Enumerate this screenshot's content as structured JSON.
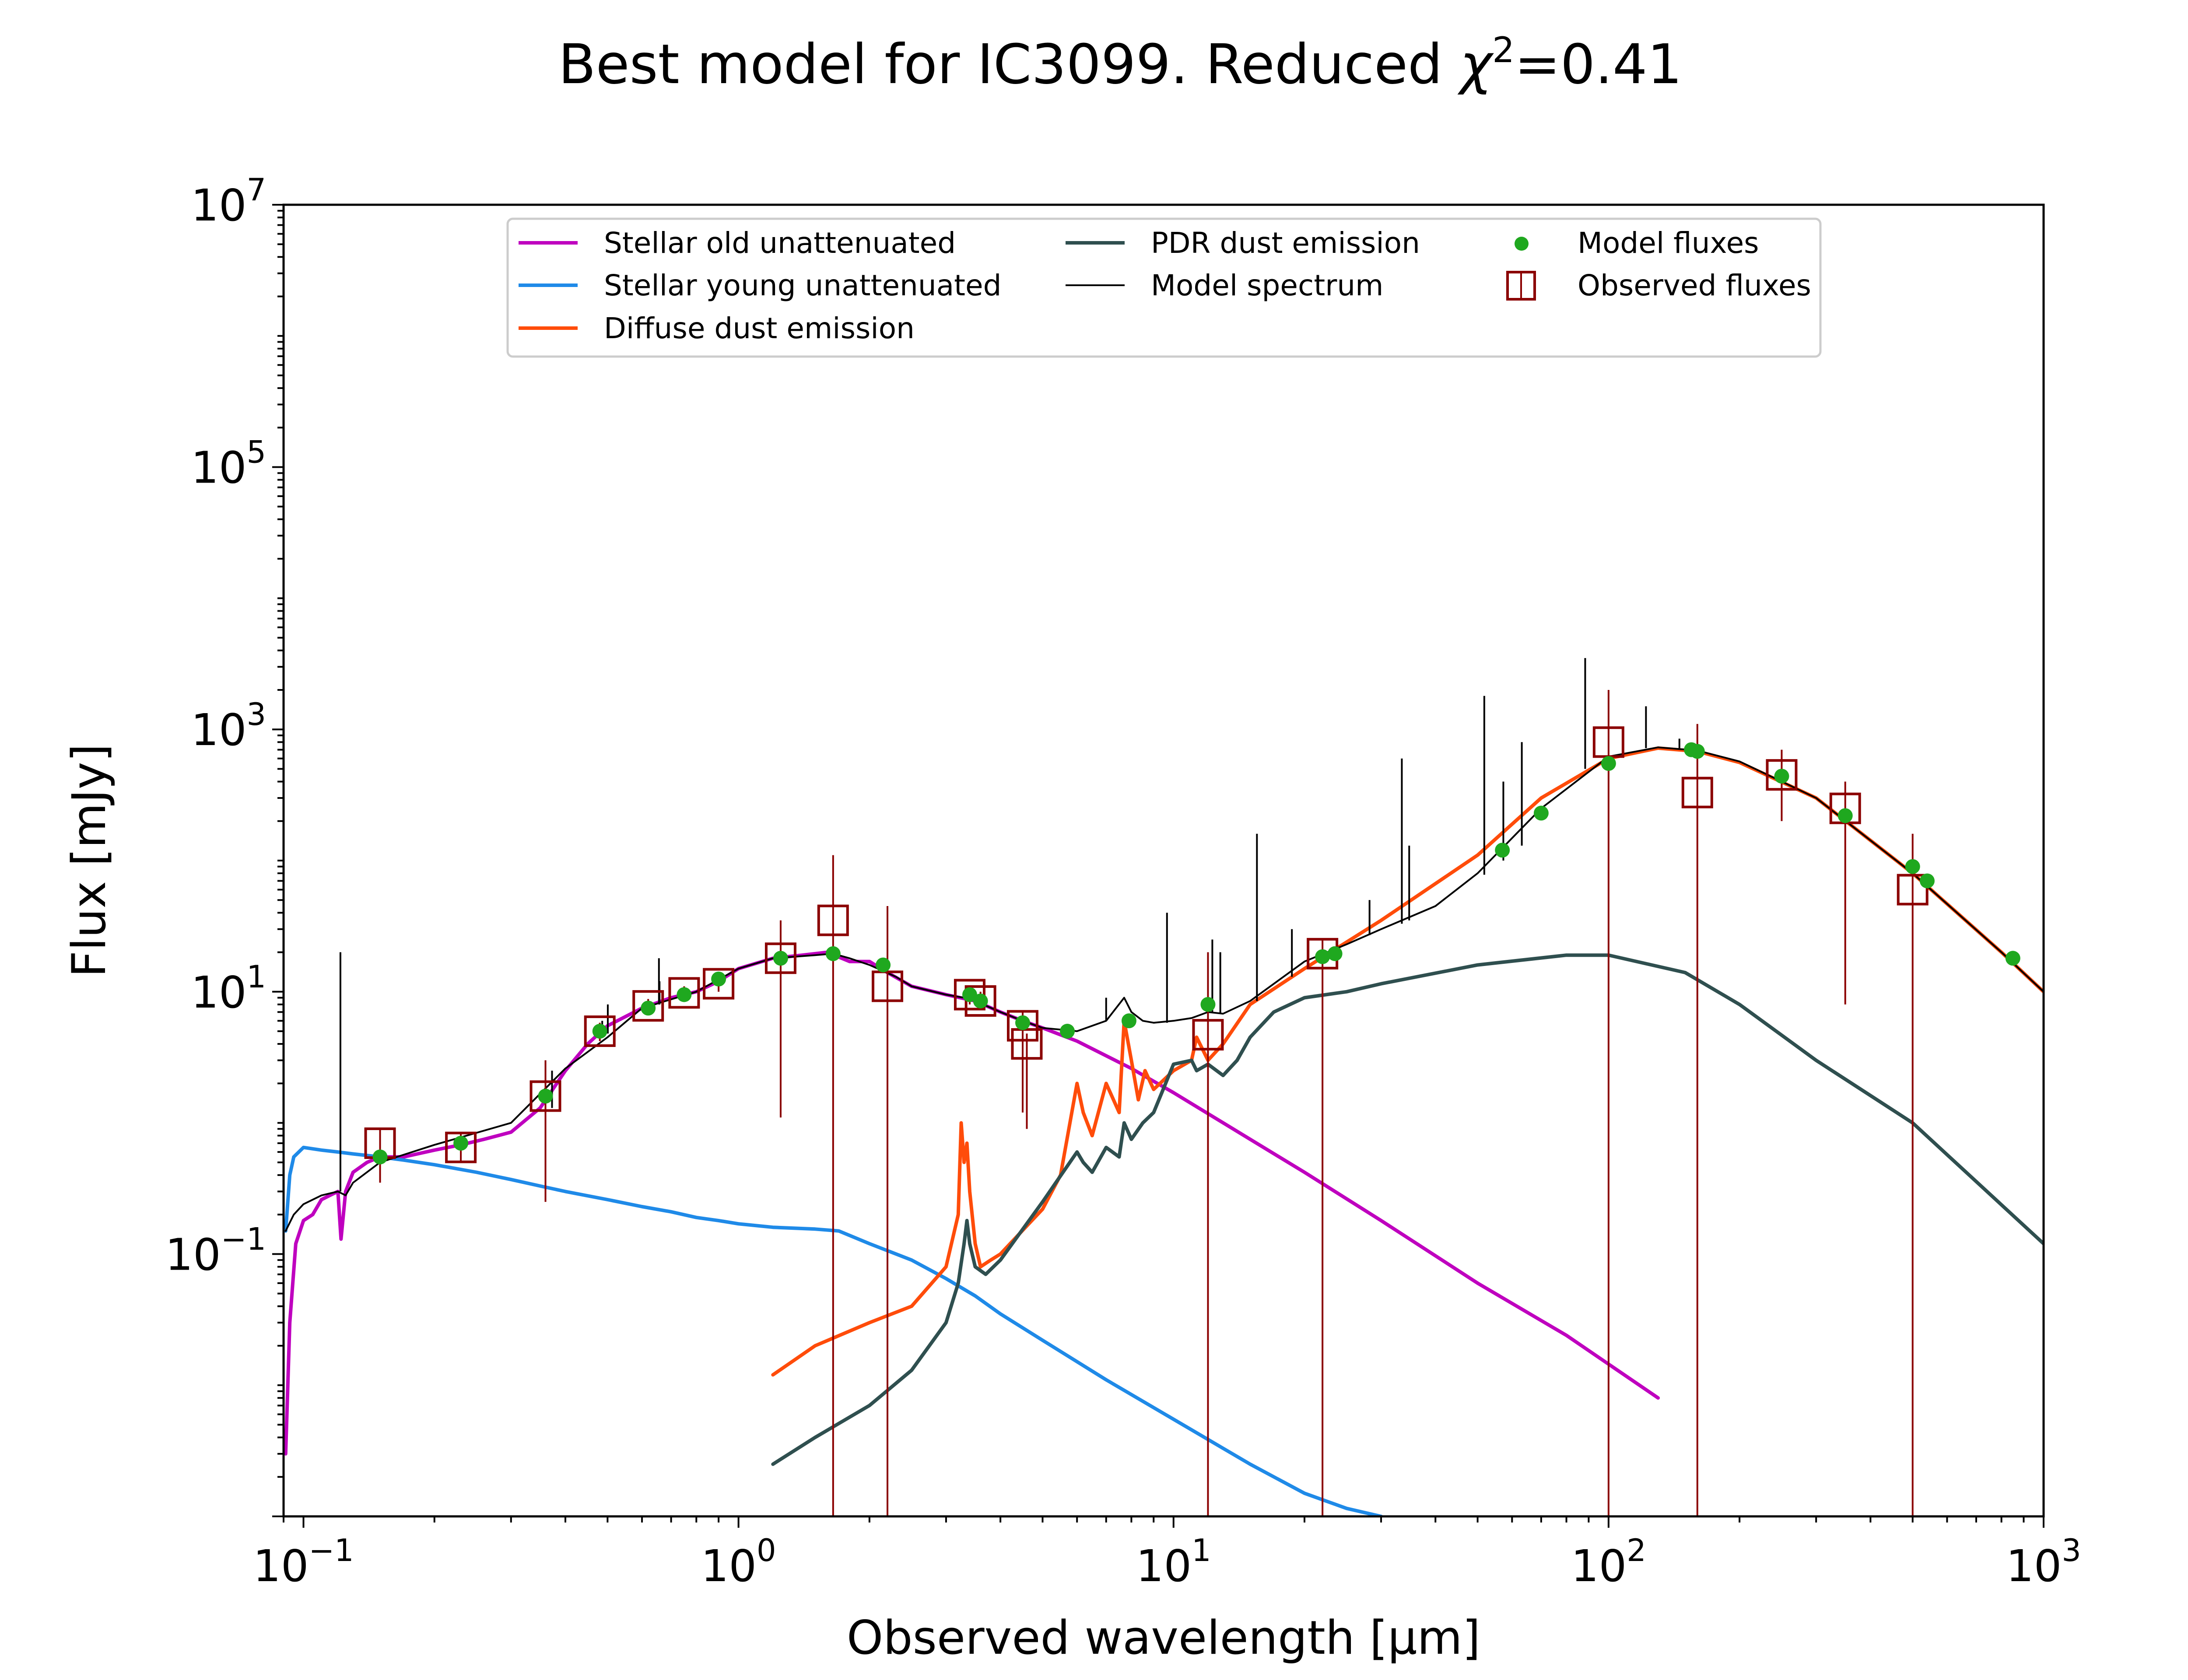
{
  "chart_data": {
    "type": "line",
    "title": "Best model for IC3099. Reduced χ²=0.41",
    "title_main": "Best model for IC3099. Reduced ",
    "title_chi": "χ",
    "title_chi_exp": "2",
    "title_value": "=0.41",
    "xlabel": "Observed wavelength [μm]",
    "ylabel": "Flux [mJy]",
    "xscale": "log",
    "yscale": "log",
    "xlim": [
      0.09,
      1000
    ],
    "ylim": [
      0.001,
      10000000
    ],
    "grid": false,
    "legend_position": "top-center",
    "x_ticks": [
      {
        "value": 0.1,
        "base": "10",
        "exp": "−1"
      },
      {
        "value": 1,
        "base": "10",
        "exp": "0"
      },
      {
        "value": 10,
        "base": "10",
        "exp": "1"
      },
      {
        "value": 100,
        "base": "10",
        "exp": "2"
      },
      {
        "value": 1000,
        "base": "10",
        "exp": "3"
      }
    ],
    "y_ticks": [
      {
        "value": 0.1,
        "base": "10",
        "exp": "−1"
      },
      {
        "value": 10,
        "base": "10",
        "exp": "1"
      },
      {
        "value": 1000,
        "base": "10",
        "exp": "3"
      },
      {
        "value": 100000,
        "base": "10",
        "exp": "5"
      },
      {
        "value": 10000000,
        "base": "10",
        "exp": "7"
      }
    ],
    "series": [
      {
        "name": "Stellar old unattenuated",
        "color": "#bf00bf",
        "kind": "line",
        "x": [
          0.091,
          0.093,
          0.096,
          0.1,
          0.105,
          0.11,
          0.115,
          0.12,
          0.122,
          0.125,
          0.13,
          0.14,
          0.15,
          0.17,
          0.2,
          0.23,
          0.26,
          0.3,
          0.35,
          0.4,
          0.45,
          0.5,
          0.6,
          0.7,
          0.8,
          0.9,
          1.0,
          1.2,
          1.4,
          1.6,
          1.8,
          2.0,
          2.2,
          2.5,
          3.0,
          3.5,
          4.0,
          4.5,
          5.0,
          6.0,
          8.0,
          10,
          15,
          20,
          30,
          50,
          80,
          130
        ],
        "y": [
          0.003,
          0.03,
          0.12,
          0.18,
          0.2,
          0.26,
          0.28,
          0.3,
          0.13,
          0.3,
          0.42,
          0.5,
          0.55,
          0.55,
          0.62,
          0.68,
          0.75,
          0.85,
          1.3,
          2.5,
          4.0,
          5.5,
          7.5,
          9.0,
          10.0,
          12.0,
          15.0,
          18.0,
          19.0,
          20.0,
          17.0,
          17.0,
          14.0,
          11.0,
          9.5,
          8.5,
          7.0,
          6.0,
          5.3,
          4.2,
          2.6,
          1.7,
          0.75,
          0.42,
          0.18,
          0.06,
          0.024,
          0.008
        ]
      },
      {
        "name": "Stellar young unattenuated",
        "color": "#1f8ae8",
        "kind": "line",
        "x": [
          0.091,
          0.093,
          0.095,
          0.1,
          0.11,
          0.12,
          0.13,
          0.15,
          0.17,
          0.2,
          0.25,
          0.3,
          0.35,
          0.4,
          0.5,
          0.6,
          0.7,
          0.8,
          0.9,
          1.0,
          1.2,
          1.5,
          1.7,
          2.0,
          2.5,
          3.0,
          3.5,
          4.0,
          5.0,
          7.0,
          10,
          15,
          20,
          25,
          30
        ],
        "y": [
          0.15,
          0.4,
          0.55,
          0.65,
          0.62,
          0.6,
          0.58,
          0.55,
          0.52,
          0.48,
          0.42,
          0.37,
          0.33,
          0.3,
          0.26,
          0.23,
          0.21,
          0.19,
          0.18,
          0.17,
          0.16,
          0.155,
          0.15,
          0.12,
          0.09,
          0.065,
          0.048,
          0.035,
          0.022,
          0.011,
          0.0055,
          0.0025,
          0.0015,
          0.00115,
          0.001
        ]
      },
      {
        "name": "Diffuse dust emission",
        "color": "#ff4c0a",
        "kind": "line",
        "x": [
          1.2,
          1.5,
          2.0,
          2.5,
          3.0,
          3.2,
          3.25,
          3.3,
          3.35,
          3.4,
          3.5,
          3.6,
          3.8,
          4.0,
          5.0,
          5.5,
          6.0,
          6.2,
          6.5,
          7.0,
          7.5,
          7.7,
          8.0,
          8.3,
          8.6,
          9.0,
          10,
          11,
          11.3,
          12,
          13,
          15,
          20,
          30,
          50,
          70,
          100,
          130,
          160,
          200,
          300,
          500,
          800,
          1000
        ],
        "y": [
          0.012,
          0.02,
          0.03,
          0.04,
          0.08,
          0.2,
          1.0,
          0.5,
          0.7,
          0.3,
          0.12,
          0.08,
          0.09,
          0.1,
          0.22,
          0.4,
          2.0,
          1.2,
          0.8,
          2.0,
          1.2,
          6.0,
          3.0,
          1.5,
          2.5,
          1.8,
          2.5,
          3.0,
          4.5,
          3.0,
          4.0,
          8.0,
          15.0,
          35.0,
          110.0,
          300.0,
          600.0,
          720.0,
          680.0,
          560.0,
          300.0,
          80.0,
          20.0,
          10.0
        ]
      },
      {
        "name": "PDR dust emission",
        "color": "#2f4f4f",
        "kind": "line",
        "x": [
          1.2,
          1.5,
          2.0,
          2.5,
          3.0,
          3.2,
          3.3,
          3.35,
          3.4,
          3.5,
          3.7,
          4.0,
          5.0,
          6.0,
          6.2,
          6.5,
          7.0,
          7.5,
          7.7,
          8.0,
          8.5,
          9.0,
          10,
          11,
          11.3,
          12,
          13,
          14,
          15,
          17,
          20,
          25,
          30,
          50,
          80,
          100,
          150,
          200,
          300,
          500,
          1000
        ],
        "y": [
          0.0025,
          0.004,
          0.007,
          0.013,
          0.03,
          0.06,
          0.12,
          0.18,
          0.12,
          0.08,
          0.07,
          0.09,
          0.25,
          0.6,
          0.5,
          0.42,
          0.65,
          0.55,
          1.0,
          0.75,
          1.0,
          1.2,
          2.8,
          3.0,
          2.5,
          2.8,
          2.3,
          3.0,
          4.5,
          7.0,
          9.0,
          10.0,
          11.5,
          16.0,
          19.0,
          19.0,
          14.0,
          8.0,
          3.0,
          1.0,
          0.12
        ]
      },
      {
        "name": "Model spectrum",
        "color": "#000000",
        "kind": "thin",
        "x": [
          0.091,
          0.095,
          0.1,
          0.11,
          0.12,
          0.125,
          0.13,
          0.15,
          0.2,
          0.3,
          0.4,
          0.5,
          0.6,
          0.8,
          1.0,
          1.2,
          1.5,
          1.65,
          1.8,
          2.0,
          2.3,
          2.5,
          3.0,
          3.3,
          3.5,
          4.0,
          4.5,
          5.0,
          6.0,
          7.0,
          7.7,
          8.0,
          8.5,
          9.0,
          10,
          11,
          11.3,
          12,
          13,
          15,
          20,
          25,
          30,
          40,
          50,
          70,
          100,
          130,
          160,
          200,
          300,
          500,
          800,
          1000
        ],
        "y": [
          0.15,
          0.2,
          0.24,
          0.28,
          0.3,
          0.28,
          0.35,
          0.5,
          0.68,
          1.0,
          2.6,
          4.5,
          7.5,
          10.0,
          15.0,
          18.0,
          19.0,
          19.5,
          18.0,
          16.0,
          13.0,
          11.0,
          9.5,
          9.0,
          8.5,
          7.0,
          6.0,
          5.3,
          5.0,
          6.0,
          9.0,
          7.0,
          6.0,
          5.8,
          6.0,
          6.3,
          6.5,
          7.0,
          6.8,
          8.5,
          17.0,
          23.0,
          30.0,
          45.0,
          80.0,
          250.0,
          620.0,
          730.0,
          690.0,
          570.0,
          300.0,
          80.0,
          20.0,
          10.0
        ]
      }
    ],
    "emission_lines": [
      {
        "x": 0.1216,
        "y_top": 20.0,
        "y_base": 0.3
      },
      {
        "x": 0.3727,
        "y_top": 2.5,
        "y_base": 1.3
      },
      {
        "x": 0.4861,
        "y_top": 6.0,
        "y_base": 4.5
      },
      {
        "x": 0.5007,
        "y_top": 8.0,
        "y_base": 4.8
      },
      {
        "x": 0.6563,
        "y_top": 18.0,
        "y_base": 8.0
      },
      {
        "x": 0.6584,
        "y_top": 12.0,
        "y_base": 8.0
      },
      {
        "x": 7.0,
        "y_top": 9.0,
        "y_base": 6.0
      },
      {
        "x": 9.66,
        "y_top": 40.0,
        "y_base": 5.8
      },
      {
        "x": 12.28,
        "y_top": 25.0,
        "y_base": 7.0
      },
      {
        "x": 12.81,
        "y_top": 20.0,
        "y_base": 6.8
      },
      {
        "x": 15.55,
        "y_top": 160.0,
        "y_base": 8.5
      },
      {
        "x": 18.71,
        "y_top": 30.0,
        "y_base": 13.0
      },
      {
        "x": 28.22,
        "y_top": 50.0,
        "y_base": 27.0
      },
      {
        "x": 33.48,
        "y_top": 600.0,
        "y_base": 33.0
      },
      {
        "x": 34.81,
        "y_top": 130.0,
        "y_base": 35.0
      },
      {
        "x": 51.8,
        "y_top": 1800.0,
        "y_base": 78.0
      },
      {
        "x": 57.3,
        "y_top": 400.0,
        "y_base": 100.0
      },
      {
        "x": 63.18,
        "y_top": 800.0,
        "y_base": 130.0
      },
      {
        "x": 88.36,
        "y_top": 3500.0,
        "y_base": 500.0
      },
      {
        "x": 121.9,
        "y_top": 1500.0,
        "y_base": 720.0
      },
      {
        "x": 145.5,
        "y_top": 850.0,
        "y_base": 720.0
      }
    ],
    "model_fluxes": {
      "name": "Model fluxes",
      "color": "#1fa81f",
      "x": [
        0.15,
        0.23,
        0.36,
        0.48,
        0.62,
        0.75,
        0.9,
        1.25,
        1.65,
        2.15,
        3.4,
        3.6,
        4.5,
        5.7,
        7.9,
        12,
        22,
        23.5,
        57,
        70,
        100,
        155,
        160,
        250,
        350,
        500,
        540,
        850
      ],
      "y": [
        0.55,
        0.7,
        1.6,
        5.0,
        7.5,
        9.5,
        12.5,
        18.0,
        19.5,
        16.0,
        9.5,
        8.5,
        5.8,
        5.0,
        6.0,
        8.0,
        18.5,
        19.5,
        120.0,
        230.0,
        550.0,
        700.0,
        680.0,
        440.0,
        220.0,
        90.0,
        70.0,
        18.0
      ]
    },
    "observed_fluxes": {
      "name": "Observed fluxes",
      "color": "#8b0000",
      "x": [
        0.15,
        0.23,
        0.36,
        0.48,
        0.62,
        0.75,
        0.9,
        1.25,
        1.65,
        2.2,
        3.4,
        3.6,
        4.5,
        4.6,
        12,
        22,
        100,
        160,
        250,
        350,
        500
      ],
      "y": [
        0.7,
        0.65,
        1.6,
        5.0,
        7.8,
        9.8,
        11.5,
        18.0,
        35.0,
        11.0,
        9.5,
        8.5,
        5.5,
        4.0,
        4.7,
        19.5,
        800.0,
        330.0,
        450.0,
        250.0,
        60.0
      ],
      "err_low": [
        0.35,
        0.5,
        0.25,
        4.2,
        6.8,
        8.5,
        10.0,
        1.1,
        0.001,
        0.001,
        8.0,
        7.3,
        1.2,
        0.9,
        0.001,
        0.001,
        0.001,
        0.001,
        200.0,
        8.0,
        0.001
      ],
      "err_high": [
        0.9,
        0.85,
        3.0,
        5.8,
        8.8,
        11.0,
        13.0,
        35.0,
        110.0,
        45.0,
        11.0,
        10.0,
        7.0,
        4.8,
        20.0,
        25.0,
        2000.0,
        1100.0,
        700.0,
        400.0,
        160.0
      ]
    }
  }
}
